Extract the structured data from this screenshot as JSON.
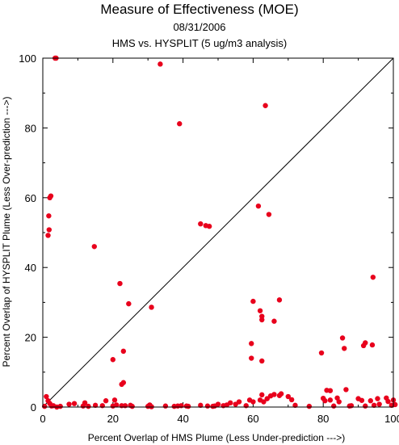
{
  "chart_data": {
    "type": "scatter",
    "title": "Measure of Effectiveness (MOE)",
    "subtitle_date": "08/31/2006",
    "subtitle_analysis": "HMS vs. HYSPLIT  (5 ug/m3 analysis)",
    "xlabel": "Percent Overlap of HMS Plume (Less Under-prediction --->)",
    "ylabel": "Percent Overlap of HYSPLIT Plume (Less Over-prediction --->)",
    "xlim": [
      0,
      100
    ],
    "ylim": [
      0,
      100
    ],
    "x_ticks": [
      0,
      20,
      40,
      60,
      80,
      100
    ],
    "y_ticks": [
      0,
      20,
      40,
      60,
      80,
      100
    ],
    "reference_line": "y = x",
    "grid": false,
    "point_color": "#e8001c",
    "x": [
      3.5,
      3.8,
      33.5,
      39,
      63.5,
      2.3,
      2,
      1.7,
      1.8,
      1.5,
      14.7,
      22,
      24.5,
      20,
      23,
      22.5,
      23,
      31,
      45,
      46.5,
      47.5,
      61.5,
      64.5,
      60,
      59.5,
      59.5,
      62,
      62.5,
      62.5,
      62.5,
      66,
      67.5,
      62.5,
      79.5,
      82,
      85.5,
      86,
      94.2,
      91.5,
      92,
      94,
      0.5,
      1,
      1.5,
      2,
      2.5,
      3,
      4,
      5,
      7.5,
      9,
      11.5,
      12,
      13,
      15,
      17,
      18,
      20,
      20.5,
      21,
      22.5,
      23.5,
      25,
      25.5,
      30,
      30.5,
      31,
      35,
      37.5,
      38.5,
      39.5,
      41,
      41.5,
      45,
      47,
      48.5,
      49,
      50,
      51.5,
      52.5,
      53.5,
      55,
      56,
      58,
      59,
      60,
      62,
      63,
      64,
      65,
      66,
      67.5,
      68,
      70,
      71,
      72,
      76,
      80,
      80.5,
      81,
      82,
      83,
      84,
      84.5,
      86.5,
      87.5,
      88,
      90,
      91,
      92,
      93.5,
      94.5,
      95.5,
      96,
      98,
      98.5,
      99.5,
      100,
      100.5
    ],
    "y": [
      100,
      100,
      98.3,
      81.2,
      86.4,
      60.5,
      60,
      54.8,
      50.8,
      49.2,
      46,
      35.4,
      29.6,
      13.6,
      16,
      6.5,
      7,
      28.6,
      52.5,
      52,
      51.8,
      57.6,
      55.2,
      30.3,
      18.2,
      14,
      27.6,
      26,
      25,
      13.2,
      24.6,
      30.7,
      3.5,
      15.5,
      4.7,
      19.8,
      16.8,
      37.2,
      17.6,
      18.4,
      17.8,
      0.2,
      3,
      1.8,
      1,
      0.3,
      0.4,
      0,
      0.2,
      0.8,
      1,
      0.3,
      1.2,
      0.2,
      0.5,
      0.4,
      1.8,
      0.3,
      2,
      0.6,
      0.4,
      0.4,
      0.5,
      0.2,
      0.2,
      0.6,
      0.1,
      0.3,
      0.2,
      0.3,
      0.4,
      0.3,
      0.2,
      0.5,
      0.3,
      0.2,
      0.3,
      0.8,
      0.4,
      0.6,
      1.2,
      0.8,
      1.5,
      0.4,
      2,
      1.5,
      2,
      1.5,
      2.4,
      3.2,
      3.6,
      3.3,
      3.8,
      3,
      2.1,
      0.5,
      0.2,
      2.5,
      1.8,
      4.8,
      2,
      0.3,
      2.6,
      1.5,
      5,
      0.3,
      0.4,
      2.4,
      1.9,
      0.3,
      1.8,
      0.5,
      2.4,
      0.8,
      2.6,
      1.6,
      0.5,
      2,
      0.7
    ]
  }
}
